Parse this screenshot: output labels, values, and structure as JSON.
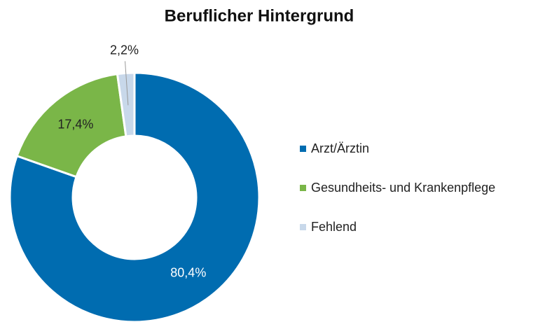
{
  "chart_data": {
    "type": "donut",
    "title": "Beruflicher Hintergrund",
    "categories": [
      "Arzt/Ärztin",
      "Gesundheits- und Krankenpflege",
      "Fehlend"
    ],
    "values": [
      80.4,
      17.4,
      2.2
    ],
    "value_labels": [
      "80,4%",
      "17,4%",
      "2,2%"
    ],
    "colors": [
      "#006cb0",
      "#7ab648",
      "#c8d8ea"
    ],
    "legend": "right"
  }
}
